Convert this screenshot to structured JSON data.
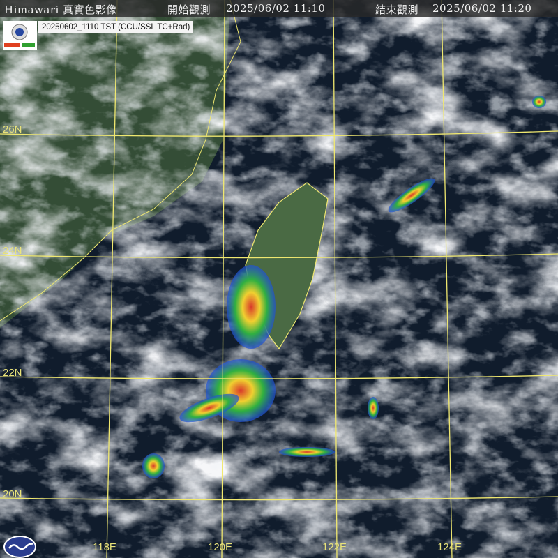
{
  "header": {
    "title": "Himawari 真實色影像",
    "start_label": "開始觀測",
    "start_time": "2025/06/02 11:10",
    "end_label": "結束觀測",
    "end_time": "2025/06/02 11:20"
  },
  "product_label": "20250602_1110 TST (CCU/SSL TC+Rad)",
  "logos": {
    "top_left": "Severe Storms Lab",
    "bottom_left": "CWA"
  },
  "grid": {
    "latitudes": [
      "26N",
      "24N",
      "22N",
      "20N"
    ],
    "longitudes": [
      "118E",
      "120E",
      "122E",
      "124E"
    ],
    "color": "#f0e870"
  },
  "colors": {
    "ocean": "#101c2c",
    "cloud": "#e6e9ee",
    "coast": "#f0e870",
    "land": "#3d5a3a"
  }
}
